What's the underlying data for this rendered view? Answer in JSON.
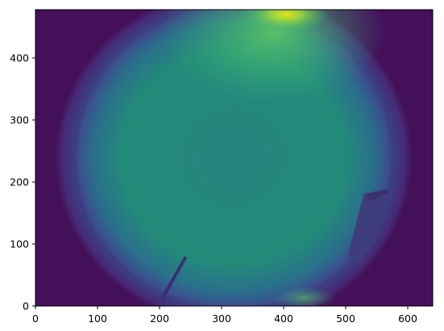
{
  "figure": {
    "kind": "image display (all-sky fisheye camera frame)",
    "colormap": "viridis",
    "origin": "lower"
  },
  "axes": {
    "x_range": [
      0,
      640
    ],
    "y_range": [
      0,
      480
    ],
    "x_ticks": [
      "0",
      "100",
      "200",
      "300",
      "400",
      "500",
      "600"
    ],
    "y_ticks": [
      "0",
      "100",
      "200",
      "300",
      "400"
    ],
    "x_tick_values": [
      0,
      100,
      200,
      300,
      400,
      500,
      600
    ],
    "y_tick_values": [
      0,
      100,
      200,
      300,
      400
    ]
  },
  "colors": {
    "frame_dark": "#45115a",
    "ring": "#3e2d78",
    "sky_main": "#26887a",
    "sky_edge": "#2c5d8a",
    "sky_bright": "#d2e21b",
    "obstruction": "#3f3a7a"
  }
}
